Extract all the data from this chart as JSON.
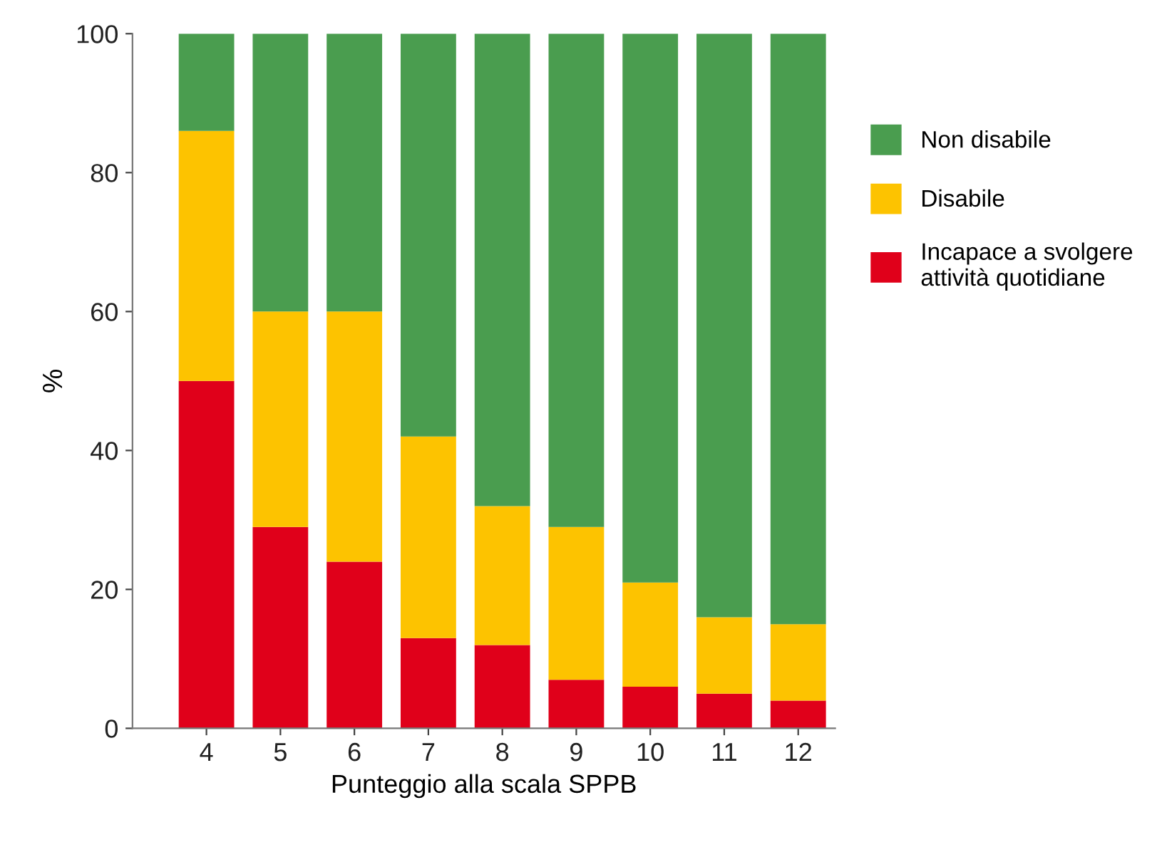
{
  "chart_data": {
    "type": "bar",
    "stacked": true,
    "xlabel": "Punteggio alla scala SPPB",
    "ylabel": "%",
    "categories": [
      "4",
      "5",
      "6",
      "7",
      "8",
      "9",
      "10",
      "11",
      "12"
    ],
    "series": [
      {
        "name": "Incapace a svolgere\nattività quotidiane",
        "color": "#e0001a",
        "values": [
          50,
          29,
          24,
          13,
          12,
          7,
          6,
          5,
          4
        ]
      },
      {
        "name": "Disabile",
        "color": "#fdc300",
        "values": [
          36,
          31,
          36,
          29,
          20,
          22,
          15,
          11,
          11
        ]
      },
      {
        "name": "Non disabile",
        "color": "#4a9d4f",
        "values": [
          14,
          40,
          40,
          58,
          68,
          71,
          79,
          84,
          85
        ]
      }
    ],
    "ylim": [
      0,
      100
    ],
    "yticks": [
      0,
      20,
      40,
      60,
      80,
      100
    ],
    "grid": false,
    "legend": "right"
  }
}
